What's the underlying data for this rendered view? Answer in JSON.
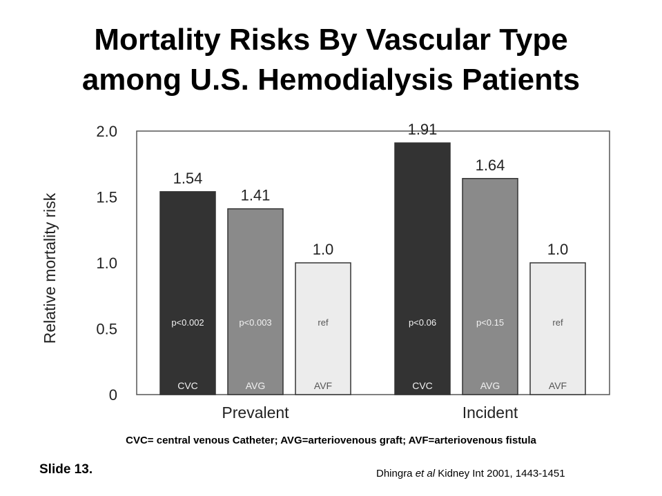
{
  "title_line1": "Mortality Risks By Vascular Type",
  "title_line2": "among U.S. Hemodialysis Patients",
  "chart_data": {
    "type": "bar",
    "ylabel": "Relative mortality risk",
    "ylim": [
      0,
      2.0
    ],
    "yticks": [
      "0",
      "0.5",
      "1.0",
      "1.5",
      "2.0"
    ],
    "yticks_values": [
      0,
      0.5,
      1.0,
      1.5,
      2.0
    ],
    "groups": [
      {
        "name": "Prevalent",
        "bars": [
          {
            "category": "CVC",
            "value": 1.54,
            "label": "1.54",
            "pvalue": "p<0.002",
            "color": "#333333"
          },
          {
            "category": "AVG",
            "value": 1.41,
            "label": "1.41",
            "pvalue": "p<0.003",
            "color": "#8a8a8a"
          },
          {
            "category": "AVF",
            "value": 1.0,
            "label": "1.0",
            "pvalue": "ref",
            "color": "#ececec"
          }
        ]
      },
      {
        "name": "Incident",
        "bars": [
          {
            "category": "CVC",
            "value": 1.91,
            "label": "1.91",
            "pvalue": "p<0.06",
            "color": "#333333"
          },
          {
            "category": "AVG",
            "value": 1.64,
            "label": "1.64",
            "pvalue": "p<0.15",
            "color": "#8a8a8a"
          },
          {
            "category": "AVF",
            "value": 1.0,
            "label": "1.0",
            "pvalue": "ref",
            "color": "#ececec"
          }
        ]
      }
    ]
  },
  "legend_note": "CVC= central venous Catheter; AVG=arteriovenous graft; AVF=arteriovenous fistula",
  "slide_label": "Slide 13.",
  "citation": {
    "author": "Dhingra",
    "etal": "et al",
    "rest": " Kidney Int 2001, 1443-1451"
  }
}
